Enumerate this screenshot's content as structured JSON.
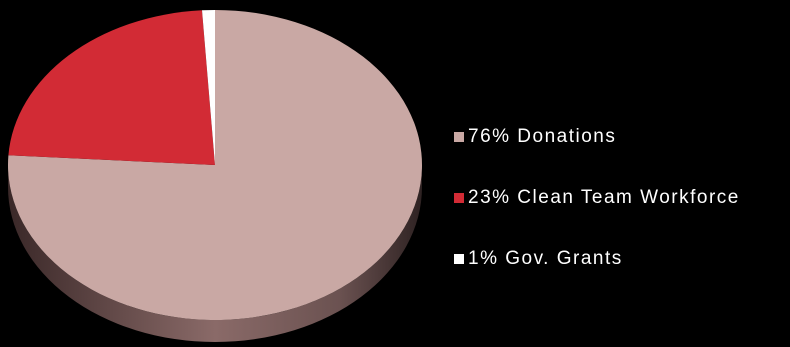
{
  "chart_data": {
    "type": "pie",
    "style": "3d",
    "title": "",
    "legend_position": "right",
    "slices": [
      {
        "label": "Donations",
        "value": 76,
        "display": "76% Donations",
        "color": "#c9a8a4"
      },
      {
        "label": "Clean Team Workforce",
        "value": 23,
        "display": "23% Clean Team Workforce",
        "color": "#d22b35"
      },
      {
        "label": "Gov. Grants",
        "value": 1,
        "display": "1% Gov. Grants",
        "color": "#ffffff"
      }
    ]
  }
}
